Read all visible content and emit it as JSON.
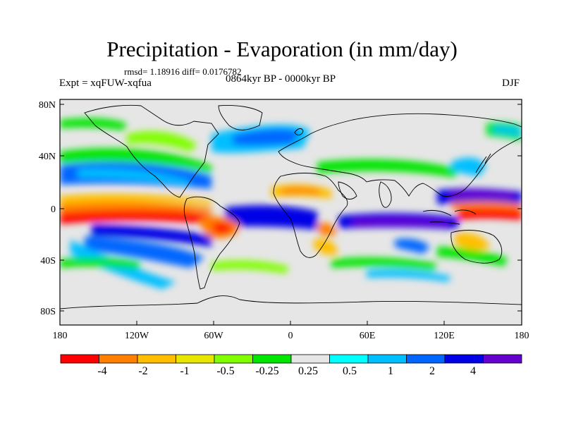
{
  "title": "Precipitation - Evaporation (in mm/day)",
  "stats": "rmsd= 1.18916 diff= 0.0176782",
  "experiment": "Expt = xqFUW-xqfua",
  "period": "0864kyr BP - 0000kyr BP",
  "season": "DJF",
  "lat_ticks": [
    "80N",
    "40N",
    "0",
    "40S",
    "80S"
  ],
  "lon_ticks": [
    "180",
    "120W",
    "60W",
    "0",
    "60E",
    "120E",
    "180"
  ],
  "colorbar": {
    "colors": [
      "#ff0000",
      "#ff8000",
      "#ffbf00",
      "#e6e600",
      "#80ff00",
      "#00e600",
      "#e6e6e6",
      "#00ffff",
      "#00bfff",
      "#0066ff",
      "#0000e6",
      "#6600cc"
    ],
    "labels": [
      "-4",
      "-2",
      "-1",
      "-0.5",
      "-0.25",
      "0.25",
      "0.5",
      "1",
      "2",
      "4"
    ]
  }
}
